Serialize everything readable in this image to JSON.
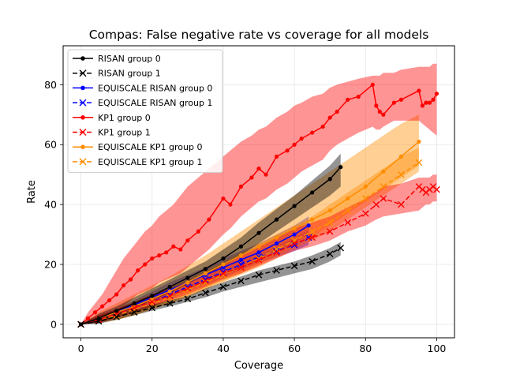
{
  "chart_data": {
    "type": "line",
    "title": "Compas: False negative rate vs coverage for all models",
    "xlabel": "Coverage",
    "ylabel": "Rate",
    "xlim": [
      -5,
      105
    ],
    "ylim": [
      -4.5,
      93
    ],
    "xticks": [
      0,
      20,
      40,
      60,
      80,
      100
    ],
    "yticks": [
      0,
      20,
      40,
      60,
      80
    ],
    "grid": true,
    "legend_position": "top-left",
    "series": [
      {
        "name": "EQUISCALE RISAN group 0",
        "color": "#0000ff",
        "marker": "dot",
        "linestyle": "solid",
        "x": [
          0,
          5,
          10,
          15,
          20,
          25,
          30,
          35,
          40,
          45,
          50,
          55,
          60,
          64
        ],
        "y": [
          0,
          2,
          4,
          6.5,
          9,
          11.5,
          14,
          16.5,
          19,
          21.5,
          24,
          27,
          30,
          33
        ],
        "band_low": [
          0,
          1,
          3,
          5,
          7,
          9,
          11.5,
          14,
          16,
          18.5,
          21,
          24,
          27,
          30
        ],
        "band_high": [
          0,
          3,
          5,
          8,
          11,
          14,
          16.5,
          19,
          22,
          24.5,
          27,
          30,
          33,
          36
        ]
      },
      {
        "name": "EQUISCALE RISAN group 1",
        "color": "#0000ff",
        "marker": "x",
        "linestyle": "dashed",
        "x": [
          0,
          5,
          10,
          15,
          20,
          25,
          30,
          35,
          40,
          45,
          50,
          55,
          60,
          64
        ],
        "y": [
          0,
          1.5,
          3.5,
          5.5,
          7.5,
          10,
          12.5,
          15,
          17.5,
          20,
          22.5,
          24.5,
          26.5,
          29
        ],
        "band_low": [
          0,
          0.5,
          2.5,
          4,
          6,
          8.5,
          11,
          13,
          15.5,
          18,
          20.5,
          22.5,
          24.5,
          26.5
        ],
        "band_high": [
          0,
          2.5,
          4.5,
          7,
          9,
          11.5,
          14,
          17,
          19.5,
          22,
          24.5,
          26.5,
          29,
          31.5
        ]
      },
      {
        "name": "EQUISCALE KP1 group 0",
        "color": "#ff8c00",
        "marker": "dot",
        "linestyle": "solid",
        "x": [
          0,
          5,
          10,
          15,
          20,
          25,
          30,
          35,
          40,
          45,
          50,
          55,
          60,
          65,
          70,
          75,
          80,
          85,
          90,
          95
        ],
        "y": [
          0,
          2,
          4,
          6,
          8.5,
          11,
          14,
          17,
          20,
          23,
          26,
          29,
          32,
          35,
          38,
          42,
          46,
          51,
          56,
          61
        ],
        "band_low": [
          0,
          0.5,
          1.5,
          3,
          5,
          7,
          9.5,
          12,
          14.5,
          17,
          20,
          23,
          26,
          29,
          33,
          37,
          41,
          45,
          49,
          53
        ],
        "band_high": [
          0,
          4,
          7,
          10,
          13,
          16,
          19.5,
          23,
          27,
          31,
          35,
          39,
          43,
          47,
          51,
          55,
          59,
          63,
          67,
          70
        ]
      },
      {
        "name": "EQUISCALE KP1 group 1",
        "color": "#ff8c00",
        "marker": "x",
        "linestyle": "dashed",
        "x": [
          0,
          5,
          10,
          15,
          20,
          25,
          30,
          35,
          40,
          45,
          50,
          55,
          60,
          65,
          70,
          75,
          80,
          85,
          90,
          95
        ],
        "y": [
          0,
          1.5,
          3,
          5,
          7,
          9,
          11.5,
          14,
          16.5,
          19,
          22,
          25,
          28,
          31,
          34,
          38,
          42,
          46,
          50,
          54
        ],
        "band_low": [
          0,
          0.5,
          1.5,
          3,
          5,
          7,
          9,
          11.5,
          14,
          16.5,
          19,
          22,
          25,
          28,
          31,
          35,
          39,
          43,
          47,
          51
        ],
        "band_high": [
          0,
          3,
          5,
          7.5,
          10,
          12.5,
          15,
          18,
          21,
          24,
          27,
          30,
          33,
          36,
          40,
          44,
          48,
          52,
          56,
          59
        ]
      },
      {
        "name": "KP1 group 0",
        "color": "#ff0000",
        "marker": "dot",
        "linestyle": "solid",
        "x": [
          0,
          2,
          4,
          6,
          8,
          10,
          12,
          14,
          16,
          18,
          20,
          22,
          24,
          26,
          28,
          30,
          33,
          36,
          40,
          42,
          45,
          48,
          50,
          52,
          55,
          58,
          60,
          62,
          65,
          68,
          70,
          72,
          75,
          78,
          82,
          83,
          84,
          85,
          88,
          90,
          95,
          96,
          97,
          98,
          99,
          100
        ],
        "y": [
          0,
          2,
          4,
          6,
          8,
          10,
          13,
          15,
          18,
          20,
          22,
          23,
          24,
          26,
          25,
          28,
          31,
          35,
          42,
          40,
          46,
          49,
          52,
          50,
          56,
          58,
          60,
          62,
          64,
          66,
          69,
          71,
          75,
          76,
          80,
          73,
          71,
          70,
          74,
          75,
          78,
          73,
          74,
          74,
          75,
          77
        ],
        "band_low": [
          0,
          0,
          1,
          2,
          3,
          4,
          6,
          8,
          10,
          11,
          12,
          14,
          15,
          16,
          17,
          19,
          22,
          25,
          30,
          32,
          36,
          39,
          41,
          42,
          45,
          47,
          49,
          51,
          53,
          55,
          58,
          60,
          62,
          64,
          66,
          65,
          65,
          66,
          68,
          68,
          68,
          67,
          66,
          65,
          64,
          63
        ],
        "band_high": [
          0,
          4,
          7,
          10,
          14,
          18,
          22,
          25,
          28,
          31,
          33,
          36,
          38,
          40,
          43,
          46,
          49,
          52,
          56,
          58,
          61,
          63,
          65,
          66,
          69,
          71,
          73,
          74,
          76,
          77,
          79,
          80,
          81,
          82,
          83,
          83,
          83,
          84,
          84,
          85,
          86,
          86,
          86,
          86,
          87,
          87
        ]
      },
      {
        "name": "KP1 group 1",
        "color": "#ff0000",
        "marker": "x",
        "linestyle": "dashed",
        "x": [
          0,
          5,
          10,
          15,
          20,
          25,
          30,
          35,
          40,
          45,
          50,
          55,
          60,
          65,
          70,
          75,
          80,
          83,
          85,
          90,
          95,
          96,
          97,
          98,
          99,
          100
        ],
        "y": [
          0,
          1.5,
          3.5,
          5.5,
          7.5,
          9.5,
          12,
          14.5,
          17,
          19,
          21.5,
          24,
          27,
          29,
          31,
          34,
          37,
          40,
          42,
          40,
          46,
          45,
          44,
          45,
          46,
          45
        ],
        "band_low": [
          0,
          0.5,
          2,
          4,
          6,
          8,
          10,
          12.5,
          15,
          17,
          19.5,
          22,
          24.5,
          26,
          28,
          31,
          33,
          35,
          36,
          37,
          38,
          39,
          40,
          40,
          41,
          41
        ],
        "band_high": [
          0,
          3,
          5,
          7.5,
          10,
          12,
          14.5,
          17,
          20,
          23,
          26,
          29,
          32,
          34,
          36,
          39,
          42,
          44,
          46,
          47,
          49,
          49,
          49,
          49,
          50,
          50
        ]
      },
      {
        "name": "RISAN group 1",
        "color": "#000000",
        "marker": "x",
        "linestyle": "dashed",
        "x": [
          0,
          5,
          10,
          15,
          20,
          25,
          30,
          35,
          40,
          45,
          50,
          55,
          60,
          65,
          70,
          73
        ],
        "y": [
          0,
          1,
          2.5,
          4,
          5.5,
          7,
          8.5,
          10.5,
          12.5,
          14.5,
          16.5,
          18,
          19.5,
          21,
          23.5,
          25.5
        ],
        "band_low": [
          0,
          0.2,
          1.5,
          3,
          4.5,
          6,
          7.5,
          9,
          11,
          12.5,
          14,
          15.5,
          17,
          18.5,
          21,
          23
        ],
        "band_high": [
          0,
          2,
          3.5,
          5,
          6.5,
          8,
          9.5,
          12,
          14,
          16,
          18,
          19.5,
          21,
          23,
          25.5,
          27.5
        ]
      },
      {
        "name": "RISAN group 0",
        "color": "#000000",
        "marker": "dot",
        "linestyle": "solid",
        "x": [
          0,
          5,
          10,
          15,
          20,
          25,
          30,
          35,
          40,
          45,
          50,
          55,
          60,
          65,
          70,
          73
        ],
        "y": [
          0,
          2,
          4.5,
          7,
          9.5,
          12.5,
          15.5,
          18.5,
          22,
          26,
          30.5,
          35,
          39.5,
          44,
          48.5,
          52.5
        ],
        "band_low": [
          0,
          0.5,
          3,
          5.5,
          8,
          10.5,
          13.5,
          16.5,
          19.5,
          23,
          27,
          31,
          35,
          39,
          43,
          46
        ],
        "band_high": [
          0,
          3.5,
          6,
          9,
          12,
          15,
          18,
          21,
          25,
          29,
          34,
          38.5,
          43,
          48,
          53,
          57
        ]
      }
    ],
    "legend": [
      {
        "name": "RISAN group 0",
        "color": "#000000",
        "marker": "dot",
        "linestyle": "solid"
      },
      {
        "name": "RISAN group 1",
        "color": "#000000",
        "marker": "x",
        "linestyle": "dashed"
      },
      {
        "name": "EQUISCALE RISAN group 0",
        "color": "#0000ff",
        "marker": "dot",
        "linestyle": "solid"
      },
      {
        "name": "EQUISCALE RISAN group 1",
        "color": "#0000ff",
        "marker": "x",
        "linestyle": "dashed"
      },
      {
        "name": "KP1 group 0",
        "color": "#ff0000",
        "marker": "dot",
        "linestyle": "solid"
      },
      {
        "name": "KP1 group 1",
        "color": "#ff0000",
        "marker": "x",
        "linestyle": "dashed"
      },
      {
        "name": "EQUISCALE KP1 group 0",
        "color": "#ff8c00",
        "marker": "dot",
        "linestyle": "solid"
      },
      {
        "name": "EQUISCALE KP1 group 1",
        "color": "#ff8c00",
        "marker": "x",
        "linestyle": "dashed"
      }
    ]
  }
}
